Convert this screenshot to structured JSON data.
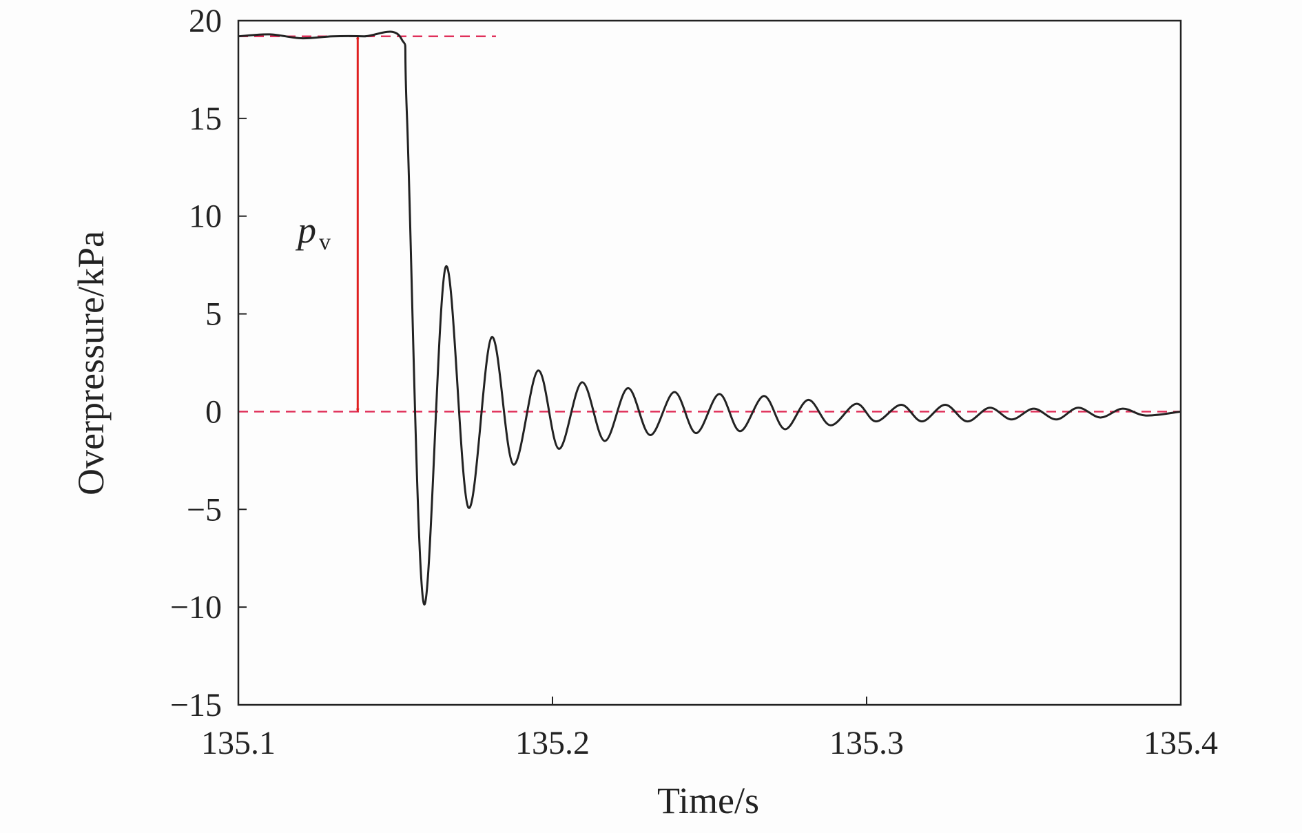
{
  "chart_data": {
    "type": "line",
    "x_label": "Time/s",
    "y_label": "Overpressure/kPa",
    "x": [
      135.1,
      135.11,
      135.12,
      135.13,
      135.14,
      135.1518,
      135.1537,
      135.159,
      135.166,
      135.1732,
      135.1806,
      135.1875,
      135.1954,
      135.202,
      135.2094,
      135.2166,
      135.224,
      135.2311,
      135.2388,
      135.2457,
      135.2531,
      135.2597,
      135.2673,
      135.274,
      135.2814,
      135.2885,
      135.2967,
      135.303,
      135.311,
      135.3176,
      135.325,
      135.332,
      135.3392,
      135.3461,
      135.3532,
      135.3604,
      135.3673,
      135.3744,
      135.3815,
      135.3889,
      135.4
    ],
    "series": [
      {
        "name": "Overpressure",
        "color": "#222222",
        "values": [
          19.2,
          19.3,
          19.1,
          19.2,
          19.2,
          19.1,
          15,
          -9.8,
          7.4,
          -4.9,
          3.8,
          -2.7,
          2.1,
          -1.9,
          1.5,
          -1.5,
          1.2,
          -1.2,
          1.0,
          -1.1,
          0.9,
          -1.0,
          0.8,
          -0.9,
          0.6,
          -0.7,
          0.4,
          -0.5,
          0.35,
          -0.5,
          0.35,
          -0.5,
          0.2,
          -0.4,
          0.15,
          -0.4,
          0.2,
          -0.3,
          0.15,
          -0.2,
          0
        ]
      }
    ],
    "xlim": [
      135.1,
      135.4
    ],
    "xticks": [
      135.1,
      135.2,
      135.3,
      135.4
    ],
    "ylim": [
      -15,
      20
    ],
    "yticks": [
      {
        "value": -15,
        "label": "−15"
      },
      {
        "value": -10,
        "label": "−10"
      },
      {
        "value": -5,
        "label": "−5"
      },
      0,
      5,
      10,
      15,
      20
    ],
    "hlines": [
      {
        "value": 19.2,
        "xlim": [
          135.1,
          135.182
        ],
        "color": "#e0305a"
      },
      {
        "value": 0,
        "xlim": [
          135.1,
          135.4
        ],
        "color": "#e0305a"
      }
    ],
    "arrow": {
      "x": 135.138,
      "from": 0,
      "to": 19.2,
      "color": "#e02020"
    },
    "annotation": {
      "text": "p",
      "subscript": "v"
    },
    "grid": false
  }
}
